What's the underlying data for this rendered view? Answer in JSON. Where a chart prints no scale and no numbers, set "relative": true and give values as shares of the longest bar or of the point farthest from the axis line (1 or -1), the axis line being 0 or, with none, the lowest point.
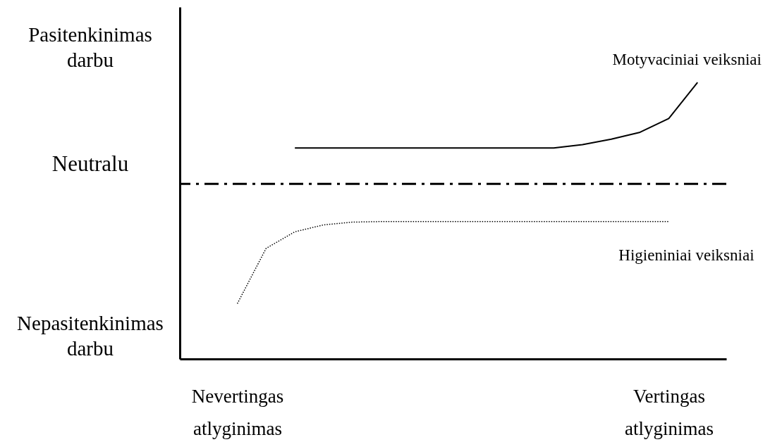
{
  "chart_data": {
    "type": "line",
    "relative": true,
    "grid": false,
    "tick_labels": "x",
    "categories": [
      null,
      null,
      "Nevertingas atlyginimas",
      null,
      null,
      null,
      null,
      null,
      null,
      null,
      null,
      null,
      null,
      null,
      null,
      null,
      null,
      "Vertingas atlyginimas",
      null,
      null
    ],
    "annotations": [
      "Pasitenkinimas darbu",
      "Nepasitenkinimas darbu"
    ],
    "ref_lines": [
      {
        "axis": "y",
        "value": 0.633,
        "label": "Neutralu",
        "color": "#000000",
        "line_style": "dashed"
      }
    ],
    "series": [
      {
        "name": "Motyvaciniai veiksniai",
        "color": "#000000",
        "line_style": "solid",
        "values": [
          null,
          null,
          null,
          null,
          0.763,
          0.763,
          0.763,
          0.763,
          0.763,
          0.763,
          0.763,
          0.763,
          0.763,
          0.763,
          0.775,
          0.795,
          0.82,
          0.87,
          1,
          null
        ]
      },
      {
        "name": "Higieniniai veiksniai",
        "color": "#000000",
        "line_style": "dotted",
        "values": [
          null,
          null,
          0.2,
          0.4,
          0.46,
          0.485,
          0.495,
          0.497,
          0.497,
          0.497,
          0.497,
          0.497,
          0.497,
          0.497,
          0.497,
          0.497,
          0.497,
          0.497,
          null,
          null
        ]
      }
    ]
  }
}
